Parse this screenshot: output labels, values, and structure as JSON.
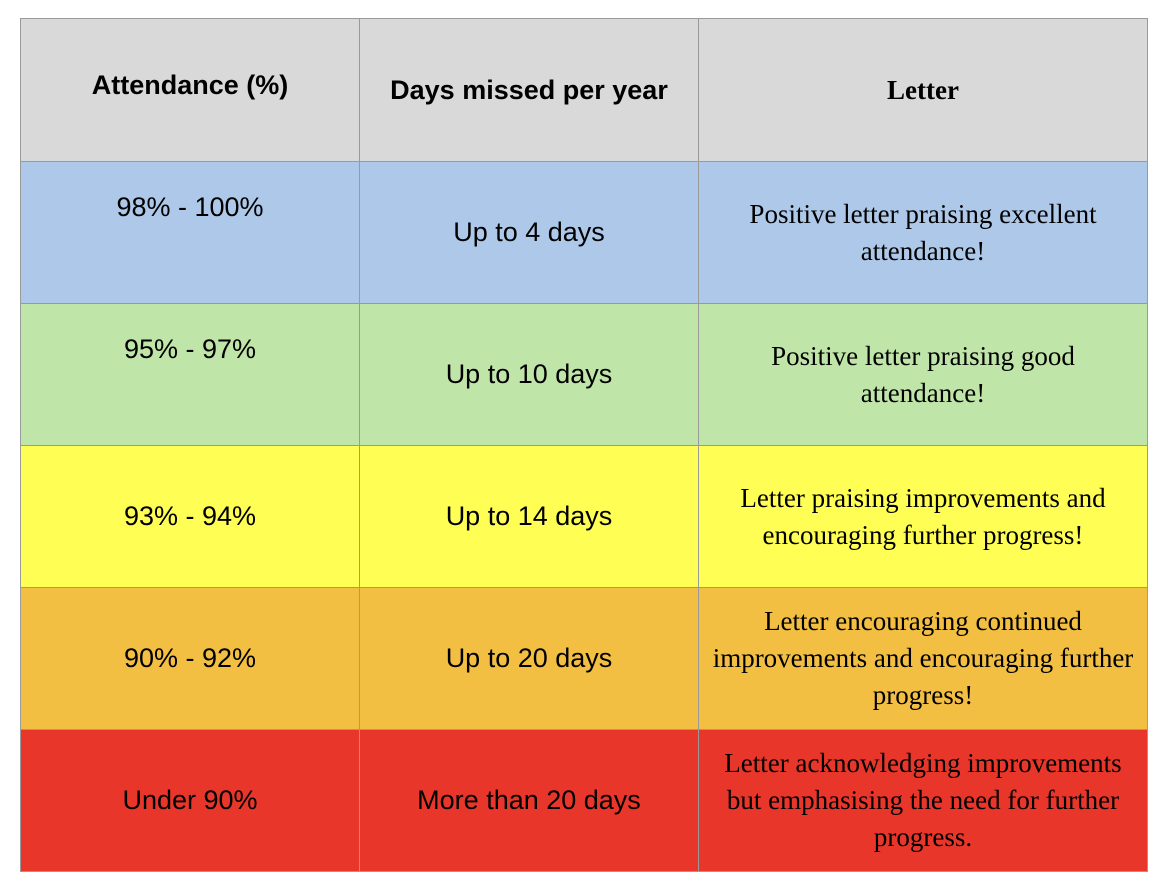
{
  "table": {
    "headers": [
      "Attendance (%)",
      "Days missed per year",
      "Letter"
    ],
    "rows": [
      {
        "attendance": "98% - 100%",
        "days_missed": "Up to 4 days",
        "letter": "Positive letter praising excellent attendance!",
        "color": "#adc8e8"
      },
      {
        "attendance": "95% - 97%",
        "days_missed": "Up to 10 days",
        "letter": "Positive letter praising good attendance!",
        "color": "#c0e5a8"
      },
      {
        "attendance": "93% - 94%",
        "days_missed": "Up to 14 days",
        "letter": "Letter praising improvements and encouraging further progress!",
        "color": "#fffe55"
      },
      {
        "attendance": "90% - 92%",
        "days_missed": "Up to 20 days",
        "letter": "Letter encouraging continued improvements and encouraging further progress!",
        "color": "#f3bf43"
      },
      {
        "attendance": "Under 90%",
        "days_missed": "More than 20 days",
        "letter": "Letter acknowledging improvements but emphasising the need for further progress.",
        "color": "#e8362a"
      }
    ]
  }
}
